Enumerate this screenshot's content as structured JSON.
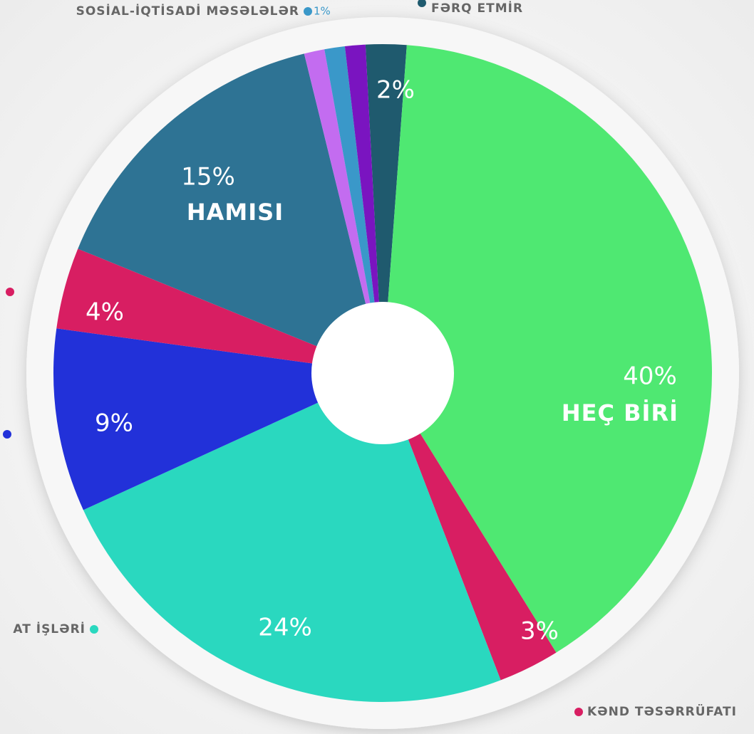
{
  "chart_data": {
    "type": "pie",
    "categories": [
      "FƏRQ ETMİR",
      "HEÇ BİRİ",
      "KƏND TƏSƏRRÜFATI",
      "AT İŞLƏRİ",
      null,
      null,
      "HAMISI",
      null,
      "SOSİAL-İQTİSADİ MƏSƏLƏLƏR",
      null
    ],
    "values": [
      2,
      40,
      3,
      24,
      9,
      4,
      15,
      1,
      1,
      1
    ],
    "value_labels": [
      "2%",
      "40%",
      "3%",
      "24%",
      "9%",
      "4%",
      "15%",
      null,
      "1%",
      null
    ],
    "colors": [
      "#1f5a6e",
      "#4fe872",
      "#d81e62",
      "#2ad8bf",
      "#2231d9",
      "#d81e62",
      "#2e7394",
      "#c36cf0",
      "#3a98c9",
      "#7a14c0"
    ]
  }
}
